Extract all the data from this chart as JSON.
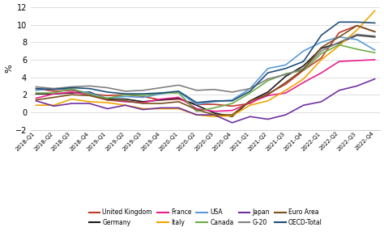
{
  "x_labels": [
    "2018-Q1",
    "2018-Q2",
    "2018-Q3",
    "2018-Q4",
    "2019-Q1",
    "2019-Q2",
    "2019-Q3",
    "2019-Q4",
    "2020-Q1",
    "2020-Q2",
    "2020-Q3",
    "2020-Q4",
    "2021-Q1",
    "2021-Q2",
    "2021-Q3",
    "2021-Q4",
    "2022-Q1",
    "2022-Q2",
    "2022-Q3",
    "2022-Q4"
  ],
  "series_order": [
    "United Kingdom",
    "Germany",
    "France",
    "Italy",
    "USA",
    "Canada",
    "Japan",
    "G-20",
    "Euro Area",
    "OECD-Total"
  ],
  "legend_row1": [
    "United Kingdom",
    "Germany",
    "France",
    "Italy",
    "USA"
  ],
  "legend_row2": [
    "Canada",
    "Japan",
    "G-20",
    "Euro Area",
    "OECD-Total"
  ],
  "series": {
    "United Kingdom": {
      "color": "#c0392b",
      "data": [
        2.7,
        2.4,
        2.5,
        2.1,
        1.9,
        2.0,
        1.8,
        1.4,
        1.5,
        0.9,
        0.9,
        0.7,
        1.0,
        2.1,
        3.2,
        4.8,
        6.2,
        9.1,
        9.9,
        9.2
      ]
    },
    "Germany": {
      "color": "#1a1a1a",
      "data": [
        2.1,
        2.1,
        2.2,
        2.3,
        1.5,
        1.5,
        1.2,
        1.4,
        1.6,
        0.8,
        -0.1,
        -0.5,
        1.3,
        2.3,
        4.1,
        5.3,
        7.3,
        7.9,
        8.8,
        8.6
      ]
    },
    "France": {
      "color": "#e91e8c",
      "data": [
        1.6,
        2.1,
        2.3,
        2.0,
        1.4,
        1.2,
        1.1,
        1.5,
        1.7,
        0.4,
        0.1,
        0.2,
        1.1,
        1.9,
        2.2,
        3.4,
        4.5,
        5.8,
        5.9,
        6.0
      ]
    },
    "Italy": {
      "color": "#f0a500",
      "data": [
        0.8,
        0.8,
        1.5,
        1.2,
        1.1,
        0.8,
        0.4,
        0.4,
        0.4,
        -0.3,
        -0.5,
        -0.4,
        0.8,
        1.3,
        2.5,
        3.8,
        6.0,
        7.6,
        9.4,
        11.6
      ]
    },
    "USA": {
      "color": "#5b9bd5",
      "data": [
        2.5,
        2.7,
        2.6,
        2.2,
        1.6,
        1.8,
        1.7,
        2.1,
        2.3,
        0.9,
        1.2,
        1.4,
        2.7,
        5.0,
        5.4,
        7.0,
        8.0,
        8.6,
        8.3,
        7.1
      ]
    },
    "Canada": {
      "color": "#70ad47",
      "data": [
        2.2,
        2.2,
        2.7,
        2.0,
        1.6,
        2.0,
        1.9,
        2.2,
        2.2,
        0.1,
        0.5,
        1.0,
        2.2,
        3.6,
        4.4,
        4.8,
        6.7,
        7.7,
        7.2,
        6.8
      ]
    },
    "Japan": {
      "color": "#7030a0",
      "data": [
        1.3,
        0.7,
        1.0,
        1.0,
        0.4,
        0.8,
        0.3,
        0.5,
        0.5,
        -0.3,
        -0.3,
        -1.2,
        -0.5,
        -0.8,
        -0.3,
        0.8,
        1.2,
        2.5,
        3.0,
        3.8
      ]
    },
    "G-20": {
      "color": "#808080",
      "data": [
        2.9,
        2.7,
        2.9,
        3.0,
        2.8,
        2.4,
        2.5,
        2.8,
        3.1,
        2.5,
        2.6,
        2.3,
        2.7,
        3.8,
        4.3,
        5.0,
        7.0,
        8.0,
        8.9,
        8.7
      ]
    },
    "Euro Area": {
      "color": "#7b4f1e",
      "data": [
        1.4,
        1.7,
        2.0,
        1.9,
        1.4,
        1.3,
        1.0,
        1.0,
        1.2,
        0.3,
        -0.3,
        -0.3,
        1.3,
        2.0,
        3.4,
        4.9,
        7.4,
        8.6,
        9.9,
        9.2
      ]
    },
    "OECD-Total": {
      "color": "#1f4e79",
      "data": [
        2.7,
        2.6,
        2.8,
        2.7,
        2.3,
        2.1,
        2.1,
        2.2,
        2.4,
        1.1,
        1.3,
        1.3,
        2.4,
        4.5,
        5.0,
        5.8,
        8.8,
        10.3,
        10.3,
        10.2
      ]
    }
  },
  "ylim": [
    -2,
    12
  ],
  "yticks": [
    -2,
    0,
    2,
    4,
    6,
    8,
    10,
    12
  ],
  "ylabel": "%",
  "background_color": "#ffffff",
  "grid_color": "#d0d0d0"
}
